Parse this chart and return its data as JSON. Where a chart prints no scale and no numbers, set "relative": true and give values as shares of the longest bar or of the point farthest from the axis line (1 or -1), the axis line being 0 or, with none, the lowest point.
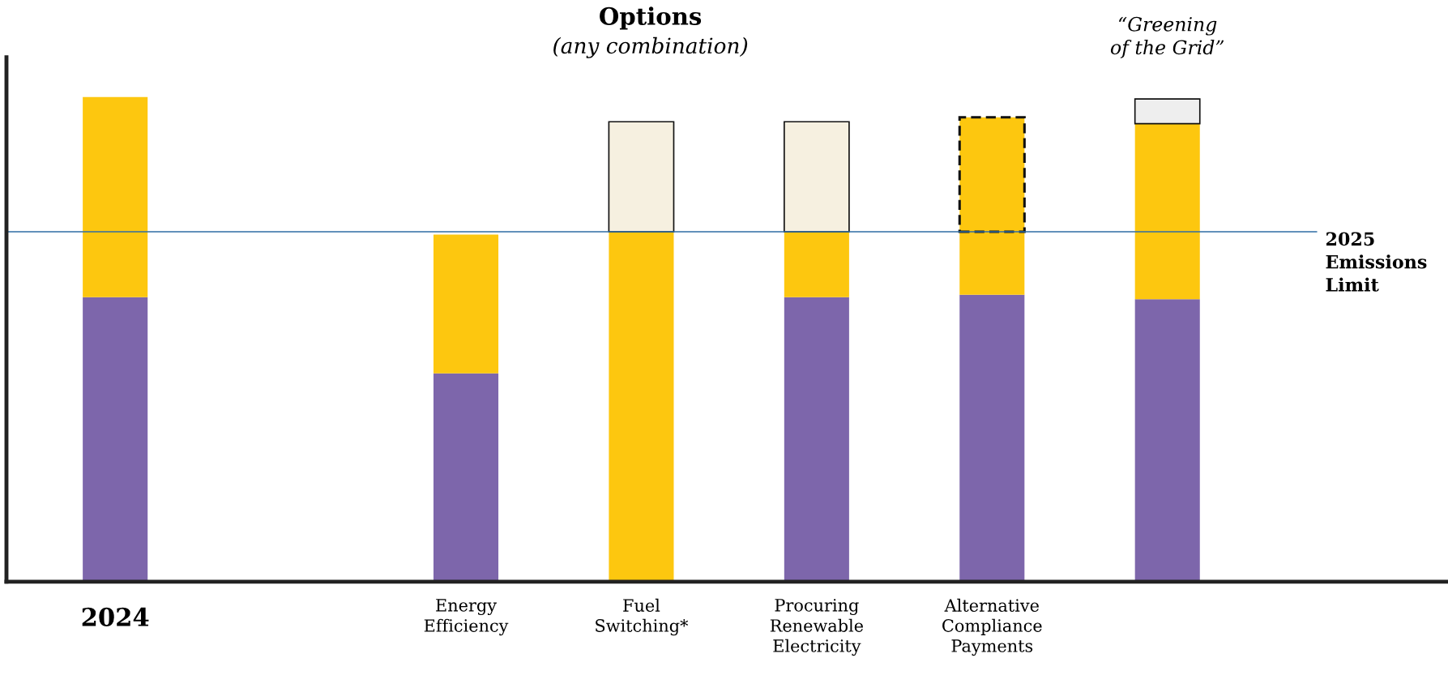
{
  "chart_data": {
    "type": "bar",
    "title": "Options",
    "subtitle": "(any combination)",
    "stacked": true,
    "relative": true,
    "categories": [
      "2024",
      null,
      "Energy\nEfficiency",
      "Fuel\nSwitching*",
      "Procuring\nRenewable\nElectricity",
      "Alternative\nCompliance\nPayments",
      null
    ],
    "series": [
      {
        "color": "#7d66ab",
        "values": [
          0.587,
          null,
          0.43,
          0,
          0.587,
          0.592,
          0.583
        ]
      },
      {
        "color": "#fdc70f",
        "values": [
          0.413,
          null,
          0.286,
          0.722,
          0.135,
          0.13,
          0.362
        ]
      },
      {
        "colors": [
          "#f6f0e0",
          "#f6f0e0",
          "#f6f0e0",
          "#f6f0e0",
          "#f6f0e0",
          "#f6f0e0",
          "#eeeeee"
        ],
        "values": [
          null,
          null,
          null,
          0.227,
          0.227,
          null,
          0.051
        ]
      },
      {
        "color": "#fdc70f",
        "line_style": "dashed",
        "values": [
          null,
          null,
          null,
          null,
          null,
          0.236,
          null
        ]
      }
    ],
    "ref_lines": [
      {
        "axis": "y",
        "value": 0.722,
        "label": "2025\nEmissions\nLimit",
        "color": "#2e6da4"
      }
    ],
    "annotations": [
      "“Greening\nof the Grid”"
    ],
    "legend": false
  }
}
